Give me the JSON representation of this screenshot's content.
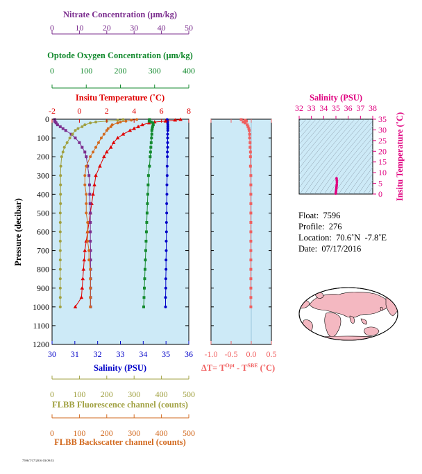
{
  "chart_data": [
    {
      "type": "scatter",
      "name": "main-profile",
      "ylabel": "Pressure (decibar)",
      "ylim": [
        1200,
        0
      ],
      "yticks": [
        0,
        100,
        200,
        300,
        400,
        500,
        600,
        700,
        800,
        900,
        1000,
        1100,
        1200
      ],
      "axes": {
        "nitrate": {
          "label": "Nitrate Concentration (µm/kg)",
          "lim": [
            0,
            50
          ],
          "ticks": [
            0,
            10,
            20,
            30,
            40,
            50
          ],
          "color": "#7b2d8e"
        },
        "oxygen": {
          "label": "Optode Oxygen Concentration (µm/kg)",
          "lim": [
            0,
            400
          ],
          "ticks": [
            0,
            100,
            200,
            300,
            400
          ],
          "color": "#138a2e"
        },
        "temperature": {
          "label": "Insitu Temperature (˚C)",
          "lim": [
            -2,
            8
          ],
          "ticks": [
            -2,
            0,
            2,
            4,
            6,
            8
          ],
          "color": "#e00000"
        },
        "salinity": {
          "label": "Salinity (PSU)",
          "lim": [
            30,
            36
          ],
          "ticks": [
            30,
            31,
            32,
            33,
            34,
            35,
            36
          ],
          "color": "#0000c8"
        },
        "fluorescence": {
          "label": "FLBB Fluorescence channel (counts)",
          "lim": [
            0,
            500
          ],
          "ticks": [
            0,
            100,
            200,
            300,
            400,
            500
          ],
          "color": "#a0a040"
        },
        "backscatter": {
          "label": "FLBB Backscatter channel (counts)",
          "lim": [
            0,
            500
          ],
          "ticks": [
            0,
            100,
            200,
            300,
            400,
            500
          ],
          "color": "#d2691e"
        }
      },
      "series": [
        {
          "axis": "salinity",
          "marker": "circle",
          "p": [
            2,
            5,
            10,
            15,
            20,
            30,
            40,
            50,
            60,
            80,
            100,
            125,
            150,
            175,
            200,
            250,
            300,
            350,
            400,
            450,
            500,
            550,
            600,
            650,
            700,
            750,
            800,
            850,
            900,
            950,
            1000
          ],
          "v": [
            35.05,
            35.06,
            35.07,
            35.07,
            35.07,
            35.08,
            35.08,
            35.08,
            35.08,
            35.07,
            35.07,
            35.07,
            35.07,
            35.06,
            35.06,
            35.05,
            35.05,
            35.04,
            35.04,
            35.03,
            35.03,
            35.02,
            35.02,
            35.01,
            35.01,
            35.0,
            35.0,
            34.99,
            34.99,
            34.98,
            34.98
          ]
        },
        {
          "axis": "temperature",
          "marker": "triangle",
          "p": [
            2,
            5,
            10,
            15,
            20,
            30,
            40,
            50,
            60,
            80,
            100,
            125,
            150,
            175,
            200,
            250,
            300,
            350,
            400,
            450,
            500,
            550,
            600,
            650,
            700,
            750,
            800,
            850,
            900,
            950,
            1000
          ],
          "v": [
            7.4,
            7.0,
            6.3,
            5.5,
            5.1,
            4.6,
            4.3,
            4.0,
            3.7,
            3.2,
            2.8,
            2.5,
            2.3,
            2.0,
            1.8,
            1.5,
            1.2,
            1.1,
            1.0,
            0.9,
            0.8,
            0.7,
            0.6,
            0.5,
            0.4,
            0.35,
            0.3,
            0.25,
            0.2,
            0.15,
            -0.3
          ]
        },
        {
          "axis": "oxygen",
          "marker": "square",
          "p": [
            2,
            5,
            10,
            15,
            20,
            30,
            40,
            50,
            60,
            80,
            100,
            125,
            150,
            175,
            200,
            250,
            300,
            350,
            400,
            450,
            500,
            550,
            600,
            650,
            700,
            750,
            800,
            850,
            900,
            950,
            1000
          ],
          "v": [
            285,
            285,
            284,
            290,
            295,
            296,
            294,
            293,
            292,
            292,
            291,
            290,
            289,
            288,
            287,
            285,
            282,
            281,
            280,
            279,
            278,
            277,
            276,
            275,
            274,
            273,
            272,
            271,
            270,
            269,
            268
          ]
        },
        {
          "axis": "nitrate",
          "marker": "square",
          "p": [
            2,
            5,
            10,
            15,
            20,
            30,
            40,
            50,
            60,
            80,
            100,
            125,
            150,
            175,
            200,
            250,
            300,
            350,
            400,
            450,
            500,
            550,
            600,
            650,
            700,
            750,
            800,
            850,
            900,
            950,
            1000
          ],
          "v": [
            1,
            1,
            1,
            1.2,
            1.5,
            2,
            3,
            4,
            5,
            7,
            8.5,
            10,
            11,
            12,
            12.5,
            13,
            13.5,
            13.7,
            13.8,
            13.9,
            14,
            14,
            14,
            14,
            14.1,
            14.1,
            14.1,
            14.1,
            14.1,
            14.1,
            14.1
          ]
        },
        {
          "axis": "fluorescence",
          "marker": "circle",
          "p": [
            2,
            5,
            10,
            15,
            20,
            30,
            40,
            50,
            60,
            80,
            100,
            125,
            150,
            175,
            200,
            250,
            300,
            350,
            400,
            450,
            500,
            550,
            600,
            650,
            700,
            750,
            800,
            850,
            900,
            950,
            1000
          ],
          "v": [
            260,
            240,
            200,
            160,
            140,
            120,
            110,
            95,
            85,
            75,
            65,
            55,
            45,
            40,
            35,
            32,
            31,
            31,
            31,
            31,
            30,
            30,
            30,
            30,
            30,
            30,
            30,
            30,
            30,
            30,
            30
          ]
        },
        {
          "axis": "backscatter",
          "marker": "circle",
          "p": [
            2,
            5,
            10,
            15,
            20,
            30,
            40,
            50,
            60,
            80,
            100,
            125,
            150,
            175,
            200,
            250,
            300,
            350,
            400,
            450,
            500,
            550,
            600,
            650,
            700,
            750,
            800,
            850,
            900,
            950,
            1000
          ],
          "v": [
            310,
            290,
            270,
            250,
            240,
            220,
            215,
            205,
            200,
            190,
            180,
            170,
            160,
            150,
            140,
            125,
            120,
            120,
            125,
            125,
            125,
            130,
            130,
            130,
            135,
            135,
            140,
            140,
            140,
            140,
            140
          ]
        }
      ]
    },
    {
      "type": "scatter",
      "name": "delta-t",
      "xlabel": "ΔT= T",
      "xlabel_sup1": "Opt",
      "xlabel_mid": " - T",
      "xlabel_sup2": "SBE",
      "xlabel_end": " (˚C)",
      "xlim": [
        -1.0,
        0.5
      ],
      "xticks": [
        -1.0,
        -0.5,
        0.0,
        0.5
      ],
      "xtick_labels": [
        "-1.0",
        "-0.5",
        "0.0",
        "0.5"
      ],
      "ylim": [
        1200,
        0
      ],
      "color": "#f06060",
      "p": [
        2,
        5,
        10,
        15,
        20,
        30,
        40,
        50,
        60,
        80,
        100,
        125,
        150,
        175,
        200,
        250,
        300,
        350,
        400,
        450,
        500,
        550,
        600,
        650,
        700,
        750,
        800,
        850,
        900,
        950,
        1000
      ],
      "v": [
        -0.25,
        -0.15,
        -0.12,
        -0.2,
        -0.15,
        -0.1,
        -0.08,
        -0.06,
        -0.05,
        -0.04,
        -0.04,
        -0.03,
        -0.03,
        -0.02,
        -0.02,
        -0.02,
        -0.01,
        -0.01,
        -0.01,
        -0.01,
        -0.01,
        -0.01,
        -0.01,
        -0.01,
        -0.01,
        -0.01,
        -0.01,
        -0.01,
        -0.01,
        -0.01,
        -0.01
      ]
    },
    {
      "type": "scatter",
      "name": "ts-diagram",
      "xlabel": "Salinity (PSU)",
      "ylabel": "Insitu Temperature (˚C)",
      "xlim": [
        32,
        38
      ],
      "xticks": [
        32,
        33,
        34,
        35,
        36,
        37,
        38
      ],
      "ylim": [
        0,
        35
      ],
      "yticks": [
        0,
        5,
        10,
        15,
        20,
        25,
        30,
        35
      ],
      "color": "#e0007f",
      "points": {
        "s": [
          34.98,
          34.99,
          35.0,
          35.01,
          35.02,
          35.03,
          35.04,
          35.05,
          35.06,
          35.07,
          35.08,
          35.07,
          35.06,
          35.05
        ],
        "t": [
          0.2,
          0.5,
          1.0,
          1.5,
          2.0,
          2.5,
          3.0,
          3.5,
          4.0,
          4.6,
          5.5,
          6.3,
          7.0,
          7.4
        ]
      }
    }
  ],
  "info": {
    "float": "Float:  7596",
    "profile": "Profile:  276",
    "location": "Location:  70.6˚N  -7.8˚E",
    "date": "Date:  07/17/2016"
  },
  "footer_text": "7596/7/17/2016 03:09:53",
  "colors": {
    "panel_bg": "#cdeaf7",
    "map_land": "#f4b8c1",
    "map_ocean": "#ffffff"
  }
}
